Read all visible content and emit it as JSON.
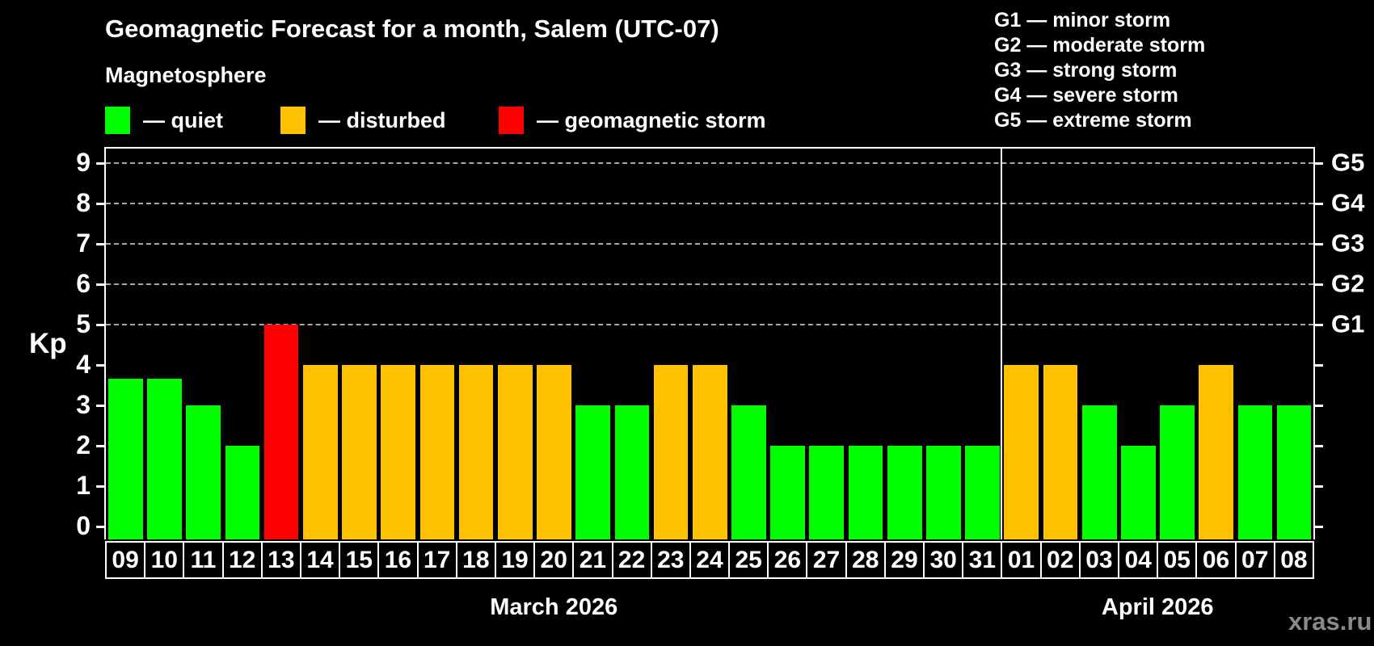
{
  "title": "Geomagnetic Forecast for a month, Salem (UTC-07)",
  "legend": {
    "heading": "Magnetosphere",
    "items": [
      {
        "key": "quiet",
        "label": "— quiet"
      },
      {
        "key": "disturbed",
        "label": "— disturbed"
      },
      {
        "key": "storm",
        "label": "— geomagnetic storm"
      }
    ]
  },
  "g_scale_legend": [
    "G1 — minor storm",
    "G2 — moderate storm",
    "G3 — strong storm",
    "G4 — severe storm",
    "G5 — extreme storm"
  ],
  "watermark": "xras.ru",
  "chart_data": {
    "type": "bar",
    "title": "Geomagnetic Forecast for a month, Salem (UTC-07)",
    "ylabel": "Kp",
    "ylim": [
      0,
      9.4
    ],
    "yticks": [
      0,
      1,
      2,
      3,
      4,
      5,
      6,
      7,
      8,
      9
    ],
    "gridlines_at": [
      5,
      6,
      7,
      8,
      9
    ],
    "grid": true,
    "legend_position": "top",
    "right_axis_labels": [
      {
        "label": "G1",
        "kp": 5
      },
      {
        "label": "G2",
        "kp": 6
      },
      {
        "label": "G3",
        "kp": 7
      },
      {
        "label": "G4",
        "kp": 8
      },
      {
        "label": "G5",
        "kp": 9
      }
    ],
    "months": [
      {
        "label": "March 2026",
        "days": 23
      },
      {
        "label": "April 2026",
        "days": 8
      }
    ],
    "categories": [
      "09",
      "10",
      "11",
      "12",
      "13",
      "14",
      "15",
      "16",
      "17",
      "18",
      "19",
      "20",
      "21",
      "22",
      "23",
      "24",
      "25",
      "26",
      "27",
      "28",
      "29",
      "30",
      "31",
      "01",
      "02",
      "03",
      "04",
      "05",
      "06",
      "07",
      "08"
    ],
    "values": [
      3.67,
      3.67,
      3,
      2,
      5,
      4,
      4,
      4,
      4,
      4,
      4,
      4,
      3,
      3,
      4,
      4,
      3,
      2,
      2,
      2,
      2,
      2,
      2,
      4,
      4,
      3,
      2,
      3,
      4,
      3,
      3
    ],
    "statuses": [
      "quiet",
      "quiet",
      "quiet",
      "quiet",
      "storm",
      "disturbed",
      "disturbed",
      "disturbed",
      "disturbed",
      "disturbed",
      "disturbed",
      "disturbed",
      "quiet",
      "quiet",
      "disturbed",
      "disturbed",
      "quiet",
      "quiet",
      "quiet",
      "quiet",
      "quiet",
      "quiet",
      "quiet",
      "disturbed",
      "disturbed",
      "quiet",
      "quiet",
      "quiet",
      "disturbed",
      "quiet",
      "quiet"
    ],
    "colors": {
      "quiet": "#00ff00",
      "disturbed": "#ffc000",
      "storm": "#ff0000",
      "axis": "#ffffff",
      "gridline": "#a8a8a8",
      "background": "#000000",
      "watermark": "#8a8a8a"
    }
  }
}
